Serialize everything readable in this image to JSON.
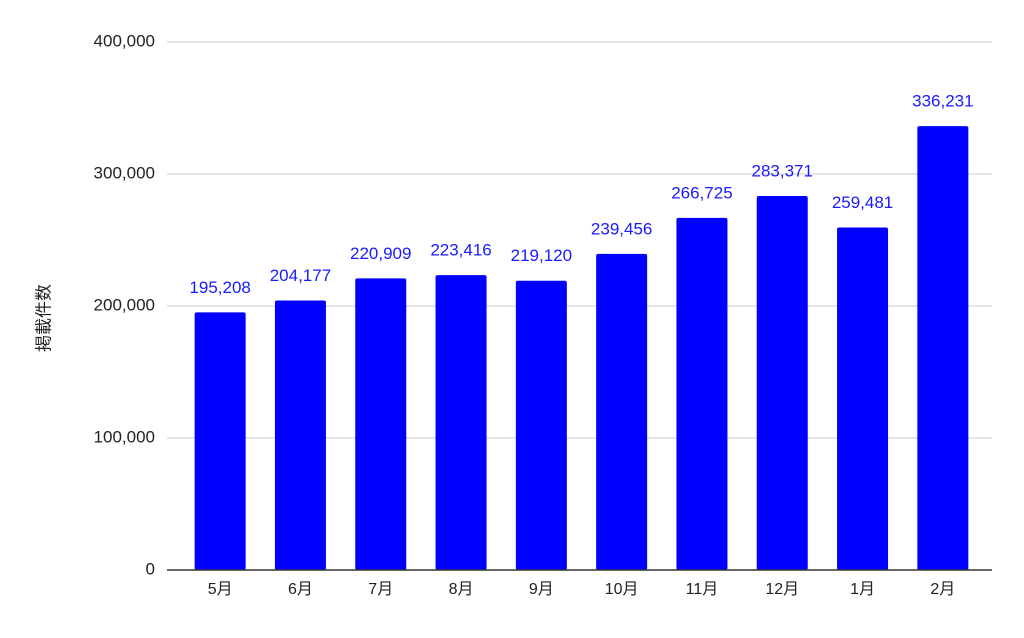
{
  "chart_data": {
    "type": "bar",
    "title": "",
    "xlabel": "",
    "ylabel": "掲載件数",
    "categories": [
      "5月",
      "6月",
      "7月",
      "8月",
      "9月",
      "10月",
      "11月",
      "12月",
      "1月",
      "2月"
    ],
    "values": [
      195208,
      204177,
      220909,
      223416,
      219120,
      239456,
      266725,
      283371,
      259481,
      336231
    ],
    "data_labels": [
      "195,208",
      "204,177",
      "220,909",
      "223,416",
      "219,120",
      "239,456",
      "266,725",
      "283,371",
      "259,481",
      "336,231"
    ],
    "ylim": [
      0,
      400000
    ],
    "yticks": [
      0,
      100000,
      200000,
      300000,
      400000
    ],
    "ytick_labels": [
      "0",
      "100,000",
      "200,000",
      "300,000",
      "400,000"
    ],
    "grid": true,
    "legend": "none",
    "colors": {
      "bar": "#0000ff",
      "data_label": "#1a1aff",
      "grid": "#cccccc",
      "axis": "#333333"
    }
  }
}
